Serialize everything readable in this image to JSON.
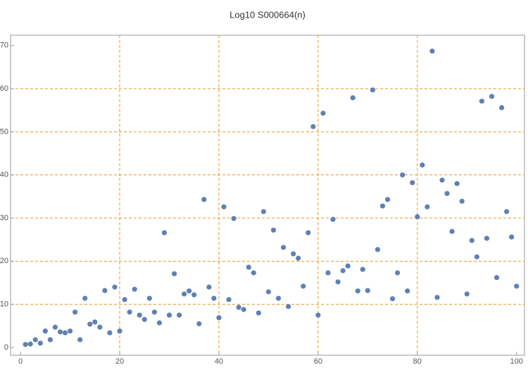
{
  "chart_data": {
    "type": "scatter",
    "title": "Log10 S000664(n)",
    "x": [
      1,
      2,
      3,
      4,
      5,
      6,
      7,
      8,
      9,
      10,
      11,
      12,
      13,
      14,
      15,
      16,
      17,
      18,
      19,
      20,
      21,
      22,
      23,
      24,
      25,
      26,
      27,
      28,
      29,
      30,
      31,
      32,
      33,
      34,
      35,
      36,
      37,
      38,
      39,
      40,
      41,
      42,
      43,
      44,
      45,
      46,
      47,
      48,
      49,
      50,
      51,
      52,
      53,
      54,
      55,
      56,
      57,
      58,
      59,
      60,
      61,
      62,
      63,
      64,
      65,
      66,
      67,
      68,
      69,
      70,
      71,
      72,
      73,
      74,
      75,
      76,
      77,
      78,
      79,
      80,
      81,
      82,
      83,
      84,
      85,
      86,
      87,
      88,
      89,
      90,
      91,
      92,
      93,
      94,
      95,
      96,
      97,
      98,
      99,
      100
    ],
    "values": [
      0.7,
      0.8,
      1.8,
      1.0,
      3.8,
      1.8,
      4.7,
      3.6,
      3.4,
      3.8,
      8.2,
      1.8,
      11.4,
      5.4,
      5.9,
      4.7,
      13.2,
      3.4,
      14.0,
      3.8,
      11.1,
      8.2,
      13.5,
      7.5,
      6.5,
      11.4,
      8.2,
      5.7,
      26.6,
      7.5,
      17.1,
      7.5,
      12.4,
      13.1,
      12.2,
      5.5,
      34.3,
      14.0,
      11.4,
      6.9,
      32.6,
      11.1,
      29.9,
      9.3,
      8.8,
      18.6,
      17.3,
      8.0,
      31.5,
      12.9,
      27.2,
      11.4,
      23.2,
      9.5,
      21.7,
      20.7,
      14.2,
      26.6,
      51.2,
      7.5,
      54.3,
      17.3,
      29.7,
      15.2,
      17.8,
      18.9,
      57.9,
      13.1,
      18.1,
      13.2,
      59.7,
      22.7,
      32.8,
      34.3,
      11.3,
      17.3,
      40.0,
      13.1,
      38.2,
      30.3,
      42.3,
      32.6,
      68.7,
      11.6,
      38.8,
      35.7,
      26.9,
      38.0,
      33.9,
      12.4,
      24.8,
      21.0,
      57.1,
      25.3,
      58.2,
      16.2,
      55.6,
      31.5,
      25.6,
      14.2
    ],
    "color": "#5e81b5",
    "grid_color": "#e8961e",
    "xlim": [
      -2,
      101.6
    ],
    "ylim": [
      -1.8,
      72.4
    ],
    "xticks": [
      0,
      20,
      40,
      60,
      80,
      100
    ],
    "yticks": [
      0,
      10,
      20,
      30,
      40,
      50,
      60,
      70
    ],
    "xgrid": [
      20,
      40,
      60,
      80
    ],
    "ygrid": [
      10,
      20,
      30,
      40,
      50,
      60
    ]
  }
}
